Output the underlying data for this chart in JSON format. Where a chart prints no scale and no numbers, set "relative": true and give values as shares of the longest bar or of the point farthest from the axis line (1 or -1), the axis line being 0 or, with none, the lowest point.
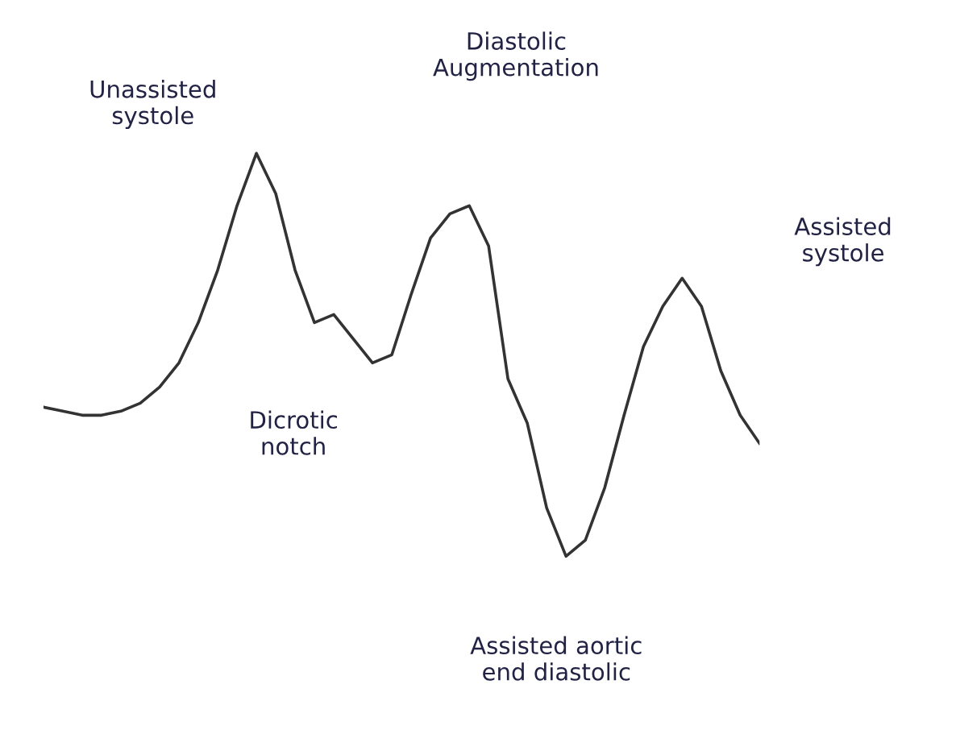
{
  "chart_data": {
    "type": "line",
    "relative": true,
    "color": "#333333",
    "categories": [
      null,
      null,
      null,
      null,
      null,
      null,
      null,
      null,
      null,
      null,
      null,
      null,
      null,
      null,
      null,
      null,
      null,
      null,
      null,
      null,
      null,
      null,
      null,
      null,
      null,
      null,
      null,
      null,
      null,
      null,
      null,
      null,
      null,
      null,
      null,
      null,
      null,
      null
    ],
    "values": [
      0.37,
      0.36,
      0.35,
      0.35,
      0.36,
      0.38,
      0.42,
      0.48,
      0.58,
      0.71,
      0.87,
      1,
      0.9,
      0.71,
      0.58,
      0.6,
      0.54,
      0.48,
      0.5,
      0.65,
      0.79,
      0.85,
      0.87,
      0.77,
      0.44,
      0.33,
      0.12,
      0,
      0.04,
      0.17,
      0.35,
      0.52,
      0.62,
      0.69,
      0.62,
      0.46,
      0.35,
      0.28
    ],
    "annotations": [
      "Unassisted\nsystole",
      "Diastolic\nAugmentation",
      "Assisted\nsystole",
      "Dicrotic\nnotch",
      "Assisted aortic\nend diastolic"
    ]
  }
}
